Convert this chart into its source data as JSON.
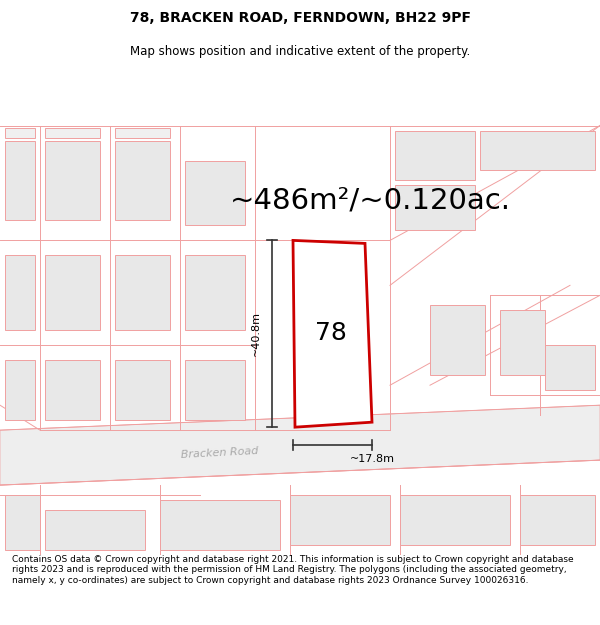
{
  "title_line1": "78, BRACKEN ROAD, FERNDOWN, BH22 9PF",
  "title_line2": "Map shows position and indicative extent of the property.",
  "area_text": "~486m²/~0.120ac.",
  "plot_number": "78",
  "dim_height": "~40.8m",
  "dim_width": "~17.8m",
  "road_label": "Bracken Road",
  "footer_text": "Contains OS data © Crown copyright and database right 2021. This information is subject to Crown copyright and database rights 2023 and is reproduced with the permission of HM Land Registry. The polygons (including the associated geometry, namely x, y co-ordinates) are subject to Crown copyright and database rights 2023 Ordnance Survey 100026316.",
  "background_color": "#ffffff",
  "map_bg_color": "#ffffff",
  "plot_fill": "#ffffff",
  "plot_edge": "#cc0000",
  "building_fill": "#e8e8e8",
  "building_edge": "#f0a0a0",
  "road_line_color": "#f0a0a0",
  "road_fill": "#eeeeee",
  "dim_line_color": "#333333",
  "title_fontsize": 10,
  "subtitle_fontsize": 8.5,
  "area_fontsize": 21,
  "plot_num_fontsize": 18,
  "dim_fontsize": 8,
  "road_fontsize": 8,
  "footer_fontsize": 6.5
}
